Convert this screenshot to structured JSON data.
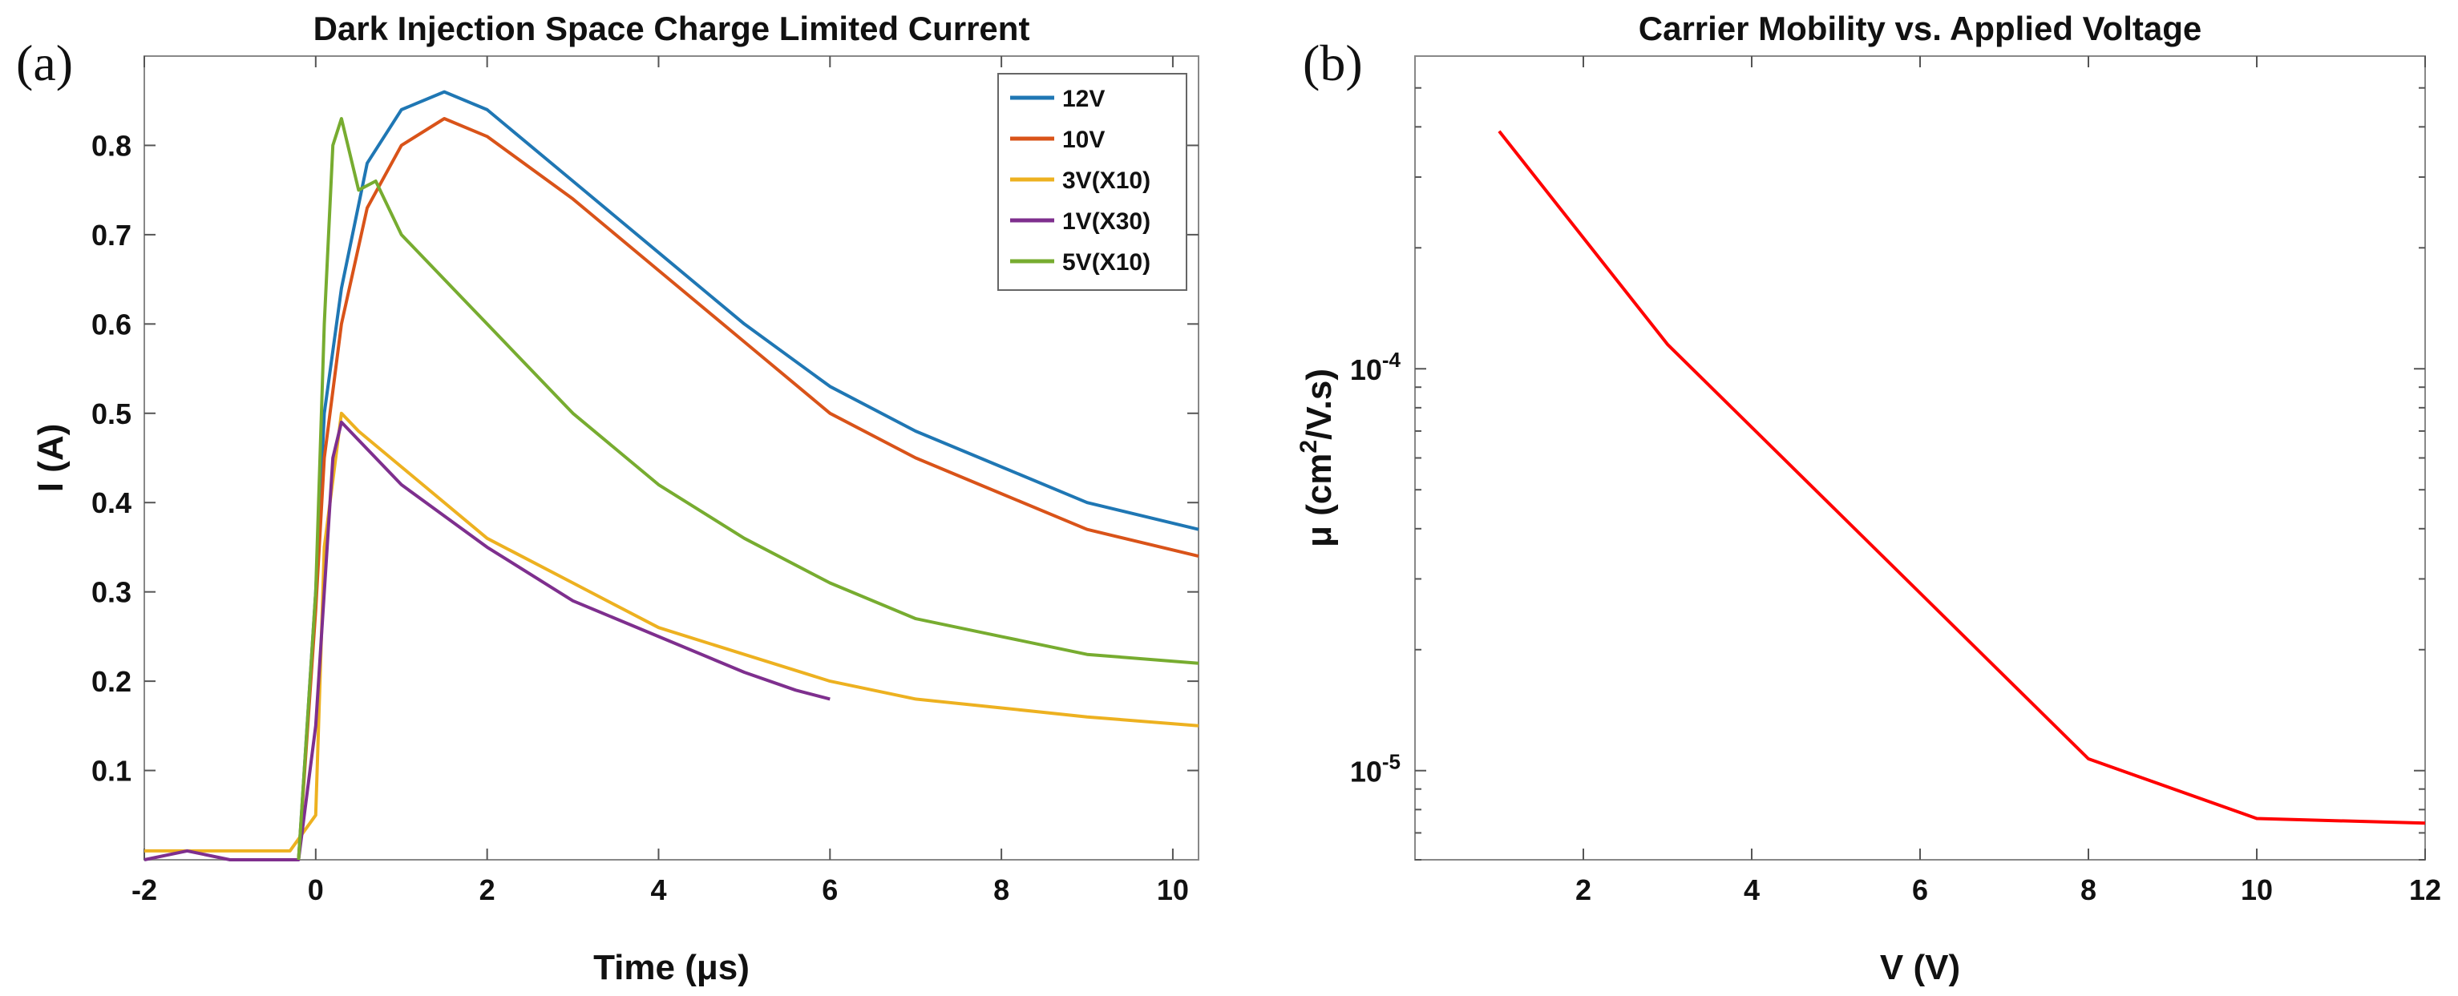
{
  "panel_labels": {
    "a": "(a)",
    "b": "(b)"
  },
  "chart_data": [
    {
      "type": "line",
      "title": "Dark Injection Space Charge Limited Current",
      "xlabel": "Time (μs)",
      "ylabel": "I (A)",
      "xlim": [
        -2,
        10.3
      ],
      "ylim": [
        0,
        0.9
      ],
      "xticks": [
        -2,
        0,
        2,
        4,
        6,
        8,
        10
      ],
      "yticks": [
        0.1,
        0.2,
        0.3,
        0.4,
        0.5,
        0.6,
        0.7,
        0.8
      ],
      "legend_position": "top-right",
      "series": [
        {
          "name": "12V",
          "color": "#1f77b4",
          "x": [
            -0.2,
            -0.1,
            0.0,
            0.1,
            0.3,
            0.6,
            1.0,
            1.5,
            2.0,
            3.0,
            4.0,
            5.0,
            6.0,
            7.0,
            8.0,
            9.0,
            10.3
          ],
          "y": [
            0.0,
            0.15,
            0.3,
            0.5,
            0.64,
            0.78,
            0.84,
            0.86,
            0.84,
            0.76,
            0.68,
            0.6,
            0.53,
            0.48,
            0.44,
            0.4,
            0.37
          ]
        },
        {
          "name": "10V",
          "color": "#d95319",
          "x": [
            -0.2,
            -0.1,
            0.0,
            0.1,
            0.3,
            0.6,
            1.0,
            1.5,
            2.0,
            3.0,
            4.0,
            5.0,
            6.0,
            7.0,
            8.0,
            9.0,
            10.3
          ],
          "y": [
            0.0,
            0.14,
            0.28,
            0.45,
            0.6,
            0.73,
            0.8,
            0.83,
            0.81,
            0.74,
            0.66,
            0.58,
            0.5,
            0.45,
            0.41,
            0.37,
            0.34
          ]
        },
        {
          "name": "3V(X10)",
          "color": "#edb120",
          "x": [
            -2.0,
            -1.0,
            -0.3,
            0.0,
            0.1,
            0.3,
            0.5,
            1.0,
            2.0,
            3.0,
            4.0,
            5.0,
            6.0,
            7.0,
            8.0,
            9.0,
            10.3
          ],
          "y": [
            0.01,
            0.01,
            0.01,
            0.05,
            0.35,
            0.5,
            0.48,
            0.44,
            0.36,
            0.31,
            0.26,
            0.23,
            0.2,
            0.18,
            0.17,
            0.16,
            0.15
          ]
        },
        {
          "name": "1V(X30)",
          "color": "#7e2f8e",
          "x": [
            -2.0,
            -1.5,
            -1.0,
            -0.2,
            0.0,
            0.2,
            0.3,
            0.5,
            1.0,
            2.0,
            3.0,
            4.0,
            5.0,
            5.6,
            6.0
          ],
          "y": [
            0.0,
            0.01,
            0.0,
            0.0,
            0.15,
            0.45,
            0.49,
            0.47,
            0.42,
            0.35,
            0.29,
            0.25,
            0.21,
            0.19,
            0.18
          ]
        },
        {
          "name": "5V(X10)",
          "color": "#77ac30",
          "x": [
            -0.2,
            0.0,
            0.1,
            0.2,
            0.3,
            0.5,
            0.7,
            1.0,
            2.0,
            3.0,
            4.0,
            5.0,
            6.0,
            7.0,
            8.0,
            9.0,
            10.3
          ],
          "y": [
            0.0,
            0.3,
            0.6,
            0.8,
            0.83,
            0.75,
            0.76,
            0.7,
            0.6,
            0.5,
            0.42,
            0.36,
            0.31,
            0.27,
            0.25,
            0.23,
            0.22
          ]
        }
      ]
    },
    {
      "type": "line",
      "title": "Carrier Mobility vs. Applied Voltage",
      "xlabel": "V (V)",
      "ylabel": "μ (cm²/V.s)",
      "yscale": "log",
      "xlim": [
        0,
        12
      ],
      "ylim": [
        6e-06,
        0.0006
      ],
      "xticks": [
        2,
        4,
        6,
        8,
        10,
        12
      ],
      "yticks": [
        {
          "value": 0.0001,
          "base": "10",
          "exp": "-4"
        },
        {
          "value": 1e-05,
          "base": "10",
          "exp": "-5"
        }
      ],
      "series": [
        {
          "name": "mobility",
          "color": "#ff0000",
          "x": [
            1,
            3,
            8,
            10,
            12
          ],
          "y": [
            0.00039,
            0.000115,
            1.07e-05,
            7.6e-06,
            7.4e-06
          ]
        }
      ]
    }
  ]
}
